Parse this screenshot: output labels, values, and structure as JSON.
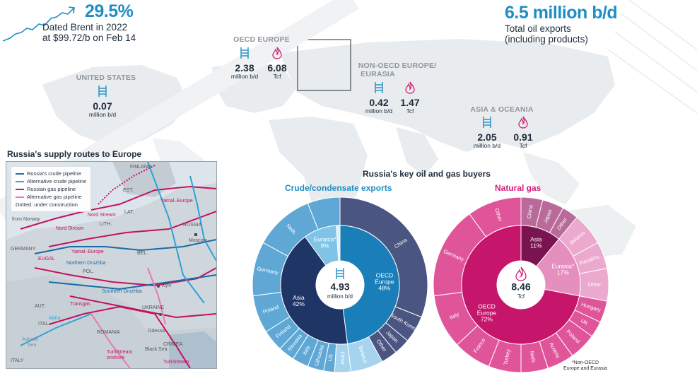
{
  "headline_left": {
    "pct": "29.5%",
    "line1": "Dated Brent in 2022",
    "line2": "at $99.72/b on Feb 14"
  },
  "headline_right": {
    "value": "6.5 million b/d",
    "line1": "Total oil exports",
    "line2": "(including products)"
  },
  "regions": {
    "us": {
      "name": "UNITED STATES",
      "oil": "0.07",
      "oil_unit": "million b/d"
    },
    "oecd_europe": {
      "name": "OECD EUROPE",
      "oil": "2.38",
      "oil_unit": "million b/d",
      "gas": "6.08",
      "gas_unit": "Tcf"
    },
    "non_oecd": {
      "name1": "NON-OECD EUROPE/",
      "name2": "EURASIA",
      "oil": "0.42",
      "oil_unit": "million b/d",
      "gas": "1.47",
      "gas_unit": "Tcf"
    },
    "asia": {
      "name": "ASIA & OCEANIA",
      "oil": "2.05",
      "oil_unit": "million b/d",
      "gas": "0.91",
      "gas_unit": "Tcf"
    }
  },
  "inset": {
    "title": "Russia's supply routes to Europe",
    "legend": [
      {
        "label": "Russia's crude pipeline",
        "color": "#1a6aa5",
        "dash": false
      },
      {
        "label": "Alternative crude pipeline",
        "color": "#2ea3d6",
        "dash": false
      },
      {
        "label": "Russian gas pipeline",
        "color": "#c4125f",
        "dash": false
      },
      {
        "label": "Alternative gas pipeline",
        "color": "#e77ab0",
        "dash": false
      }
    ],
    "legend_note": "Dotted: under construction",
    "labels": {
      "finland": "FINLAND",
      "est": "EST.",
      "lat": "LAT.",
      "lith": "LITH.",
      "russia": "RUSSIA",
      "moscow": "Moscow",
      "bel": "BEL.",
      "pol": "POL.",
      "germany": "GERMANY",
      "ukraine": "UKRAINE",
      "kyiv": "Kyiv",
      "romania": "ROMANIA",
      "aut": "AUT.",
      "ital": "ITAL",
      "italy": "ITALY",
      "crimea": "CRIMEA",
      "odessa": "Odessa",
      "black_sea": "Black Sea",
      "from_norway": "from Norway",
      "nord_stream": "Nord Stream",
      "nord_stream2": "Nord Stream",
      "yamal_europe": "Yamal–Europe",
      "yamal_europe2": "Yamal–Europe",
      "northern_druzhba": "Northern Druzhba",
      "southern_druzhba": "Southern Druzhba",
      "eugal": "EUGAL",
      "transgas": "Transgas",
      "adria": "Adria",
      "turkstream_onshore1": "TurkStream",
      "turkstream_onshore2": "onshore",
      "turkstream": "TurkStream",
      "adriatic": "Adriatic",
      "adriatic2": "Sea"
    }
  },
  "charts_title": "Russia's key oil and gas buyers",
  "footnote_line1": "*Non-OECD",
  "footnote_line2": "Europe and Eurasia",
  "chart_data": [
    {
      "type": "pie",
      "title": "Crude/condensate exports",
      "center_value": "4.93",
      "center_unit": "million b/d",
      "inner": [
        {
          "label": "OECD\nEurope",
          "pct_label": "48%",
          "value": 48,
          "color": "#1a7fb8"
        },
        {
          "label": "Asia",
          "pct_label": "42%",
          "value": 42,
          "color": "#1f3566"
        },
        {
          "label": "Eurasia*",
          "pct_label": "9%",
          "value": 9,
          "color": "#7fc3e6"
        },
        {
          "label": "",
          "pct_label": "",
          "value": 1,
          "color": "#dfeef7"
        }
      ],
      "outer": [
        {
          "label": "China",
          "value": 31,
          "color": "#4a5581"
        },
        {
          "label": "South Korea",
          "value": 5,
          "color": "#4a5581"
        },
        {
          "label": "Japan",
          "value": 3,
          "color": "#4a5581"
        },
        {
          "label": "Other",
          "value": 3,
          "color": "#4a5581"
        },
        {
          "label": "Belarus",
          "value": 6,
          "color": "#a6d4ef"
        },
        {
          "label": "Other",
          "value": 3,
          "color": "#a6d4ef"
        },
        {
          "label": "US",
          "value": 2,
          "color": "#5fa8d6"
        },
        {
          "label": "Lithuania",
          "value": 3,
          "color": "#5fa8d6"
        },
        {
          "label": "Italy",
          "value": 3,
          "color": "#5fa8d6"
        },
        {
          "label": "Slovakia",
          "value": 3,
          "color": "#5fa8d6"
        },
        {
          "label": "Finland",
          "value": 4,
          "color": "#5fa8d6"
        },
        {
          "label": "Poland",
          "value": 7,
          "color": "#5fa8d6"
        },
        {
          "label": "Germany",
          "value": 10,
          "color": "#5fa8d6"
        },
        {
          "label": "Neth.",
          "value": 11,
          "color": "#5fa8d6"
        },
        {
          "label": "",
          "value": 6,
          "color": "#5fa8d6"
        }
      ]
    },
    {
      "type": "pie",
      "title": "Natural gas",
      "center_value": "8.46",
      "center_unit": "Tcf",
      "inner": [
        {
          "label": "Asia",
          "pct_label": "11%",
          "value": 11,
          "color": "#7a1450"
        },
        {
          "label": "Eurasia*",
          "pct_label": "17%",
          "value": 17,
          "color": "#e48fbe"
        },
        {
          "label": "OECD\nEurope",
          "pct_label": "72%",
          "value": 72,
          "color": "#c6166b"
        }
      ],
      "outer": [
        {
          "label": "China",
          "value": 4,
          "color": "#b96a99"
        },
        {
          "label": "Japan",
          "value": 4,
          "color": "#b96a99"
        },
        {
          "label": "Other",
          "value": 3,
          "color": "#b96a99"
        },
        {
          "label": "Belarus",
          "value": 6,
          "color": "#eba9cd"
        },
        {
          "label": "Kazakhs.",
          "value": 5,
          "color": "#eba9cd"
        },
        {
          "label": "Other",
          "value": 6,
          "color": "#eba9cd"
        },
        {
          "label": "Hungary",
          "value": 4,
          "color": "#e0559a"
        },
        {
          "label": "UK",
          "value": 3,
          "color": "#e0559a"
        },
        {
          "label": "Poland",
          "value": 5,
          "color": "#e0559a"
        },
        {
          "label": "Austria",
          "value": 5,
          "color": "#e0559a"
        },
        {
          "label": "Neth.",
          "value": 5,
          "color": "#e0559a"
        },
        {
          "label": "Turkey",
          "value": 6,
          "color": "#e0559a"
        },
        {
          "label": "France",
          "value": 7,
          "color": "#e0559a"
        },
        {
          "label": "Italy",
          "value": 10,
          "color": "#e0559a"
        },
        {
          "label": "Germany",
          "value": 17,
          "color": "#e0559a"
        },
        {
          "label": "Other",
          "value": 10,
          "color": "#e0559a"
        }
      ]
    }
  ]
}
